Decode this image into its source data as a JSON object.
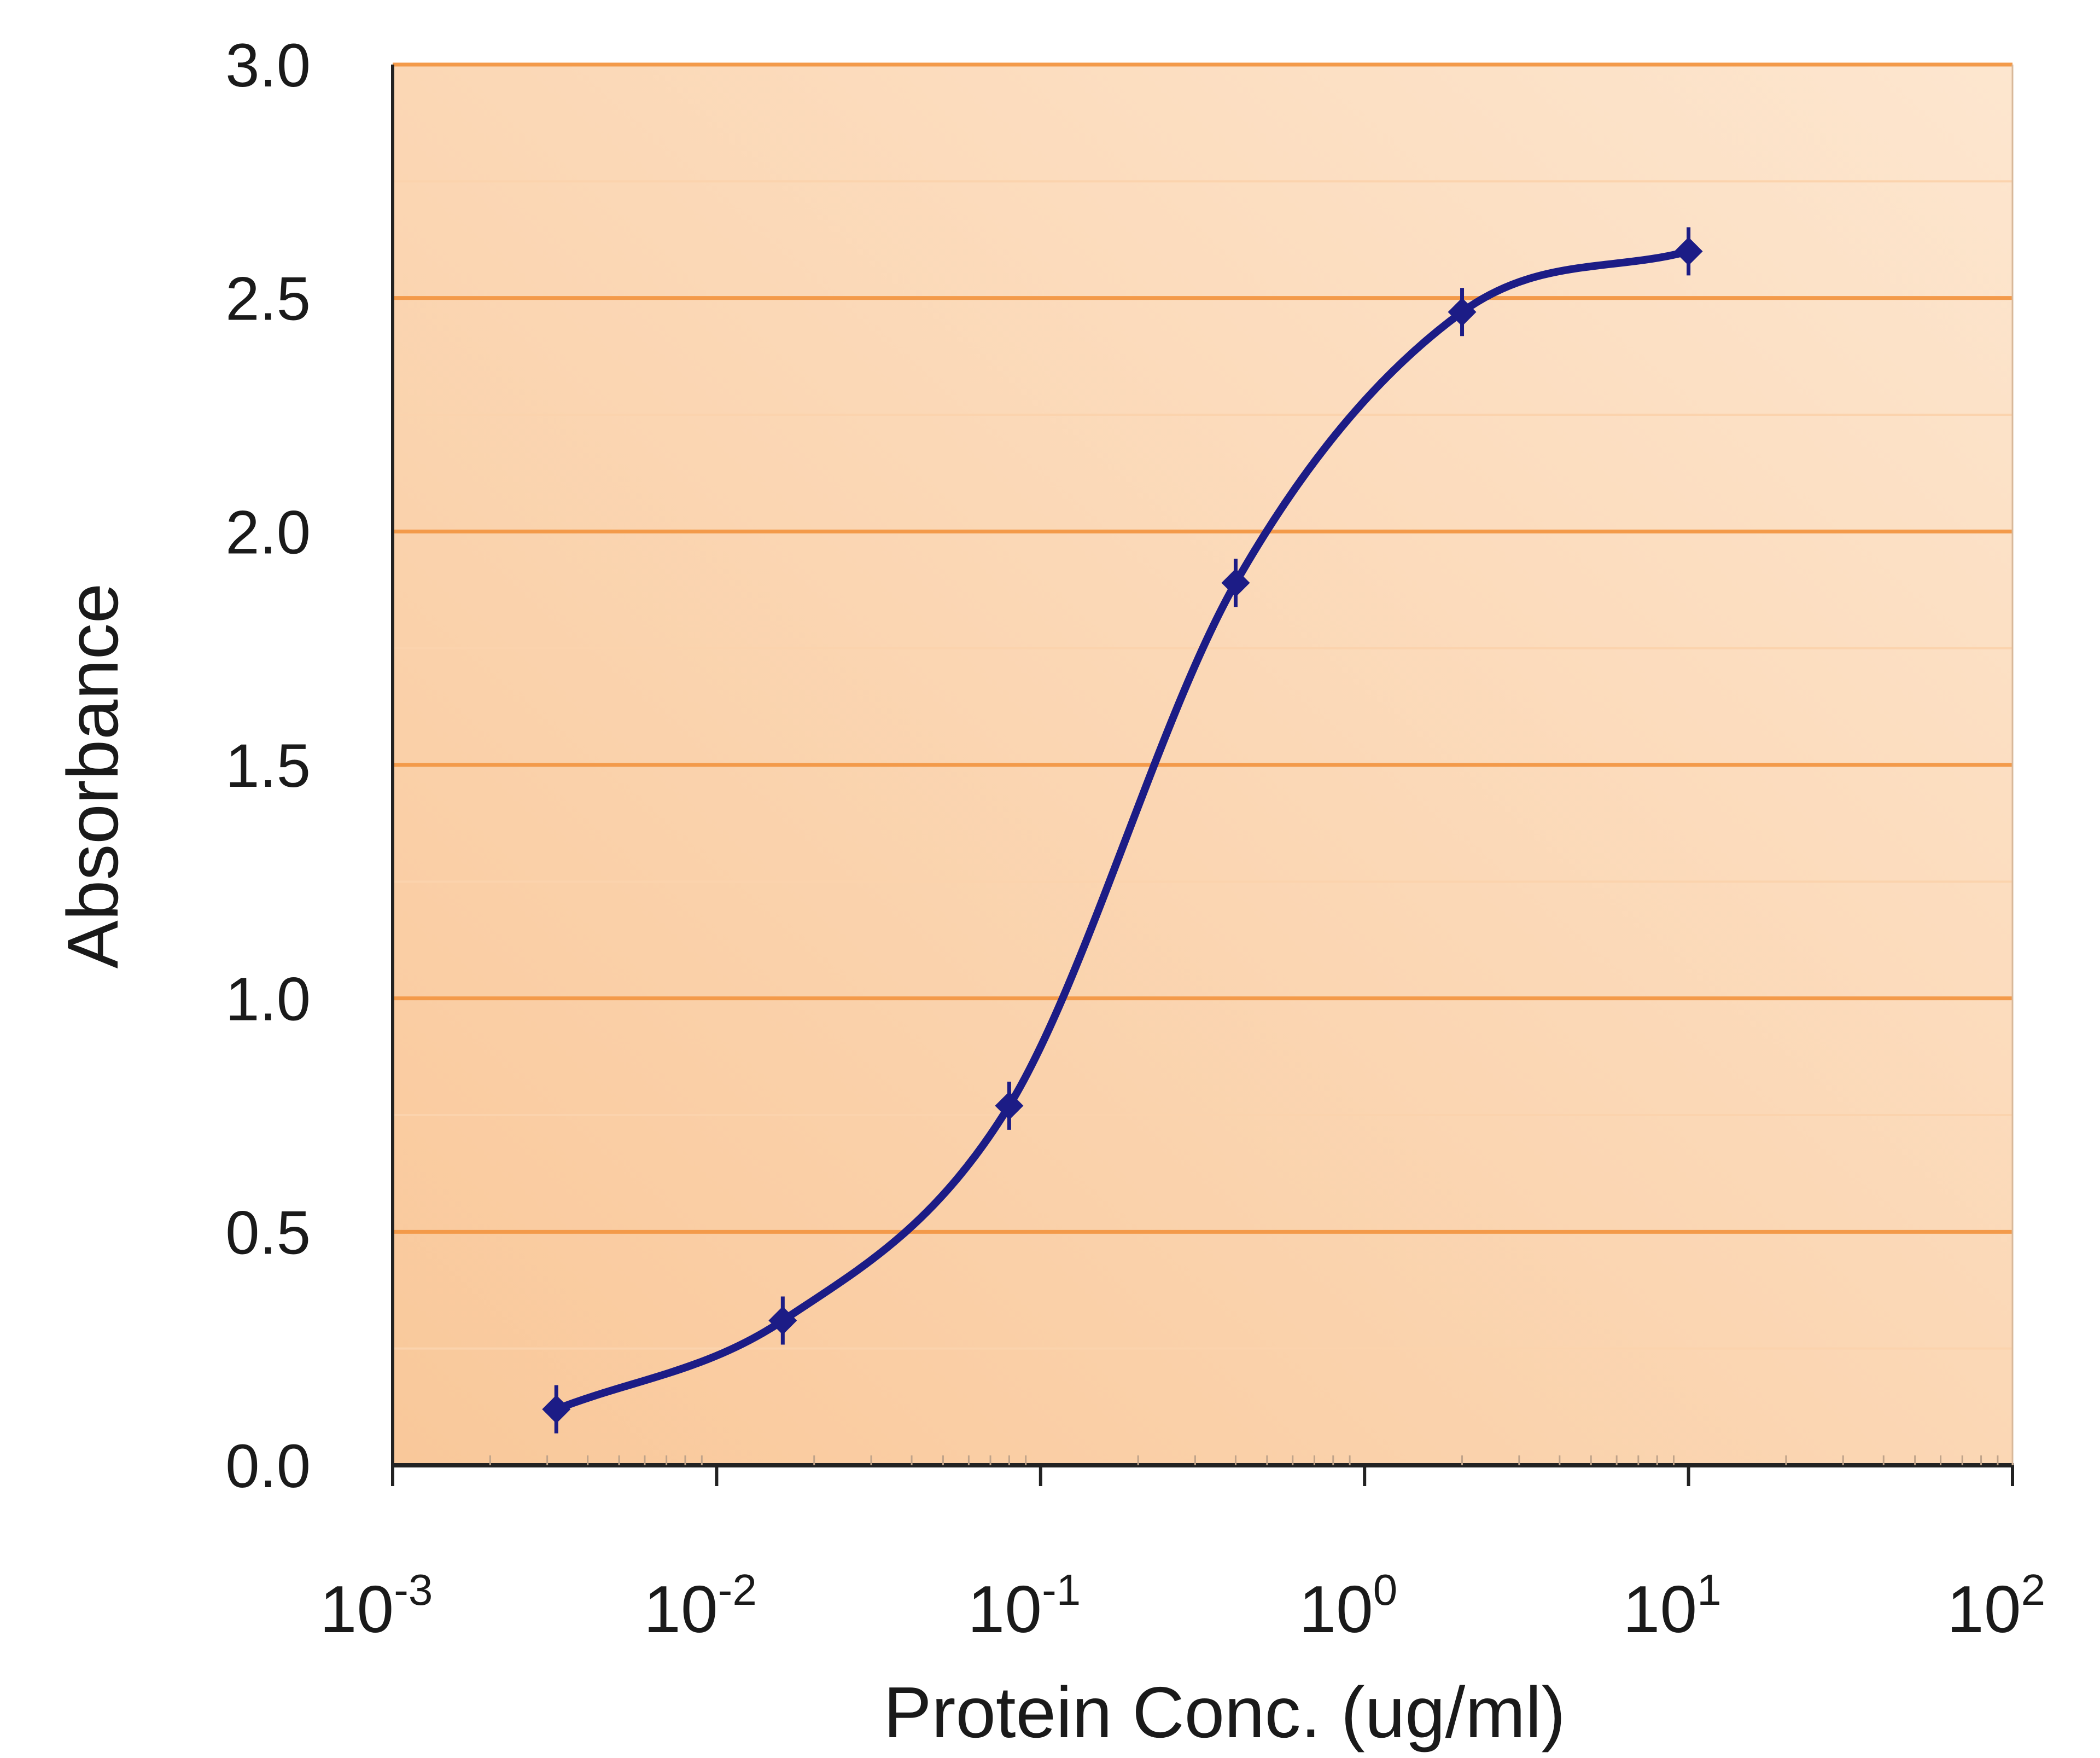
{
  "chart_data": {
    "type": "line",
    "title": "",
    "xlabel": "Protein Conc. (ug/ml)",
    "ylabel": "Absorbance",
    "xscale": "log",
    "xlim": [
      0.001,
      100
    ],
    "ylim": [
      0.0,
      3.0
    ],
    "grid": true,
    "legend": "none",
    "y_ticks": [
      "0.0",
      "0.5",
      "1.0",
      "1.5",
      "2.0",
      "2.5",
      "3.0"
    ],
    "x_ticks": [
      {
        "base": "10",
        "exp": "-3"
      },
      {
        "base": "10",
        "exp": "-2"
      },
      {
        "base": "10",
        "exp": "-1"
      },
      {
        "base": "10",
        "exp": "0"
      },
      {
        "base": "10",
        "exp": "1"
      },
      {
        "base": "10",
        "exp": "2"
      }
    ],
    "series": [
      {
        "x": [
          0.0032,
          0.016,
          0.08,
          0.4,
          2.0,
          10.0
        ],
        "y": [
          0.12,
          0.31,
          0.77,
          1.89,
          2.47,
          2.6
        ]
      }
    ],
    "colors": {
      "plot_bg_left": "#f9c89a",
      "plot_bg_right": "#fde6cf",
      "major_grid": "#f39a4a",
      "minor_grid": "#fbd3ad",
      "line": "#1c1c86",
      "frame": "#222222"
    }
  }
}
